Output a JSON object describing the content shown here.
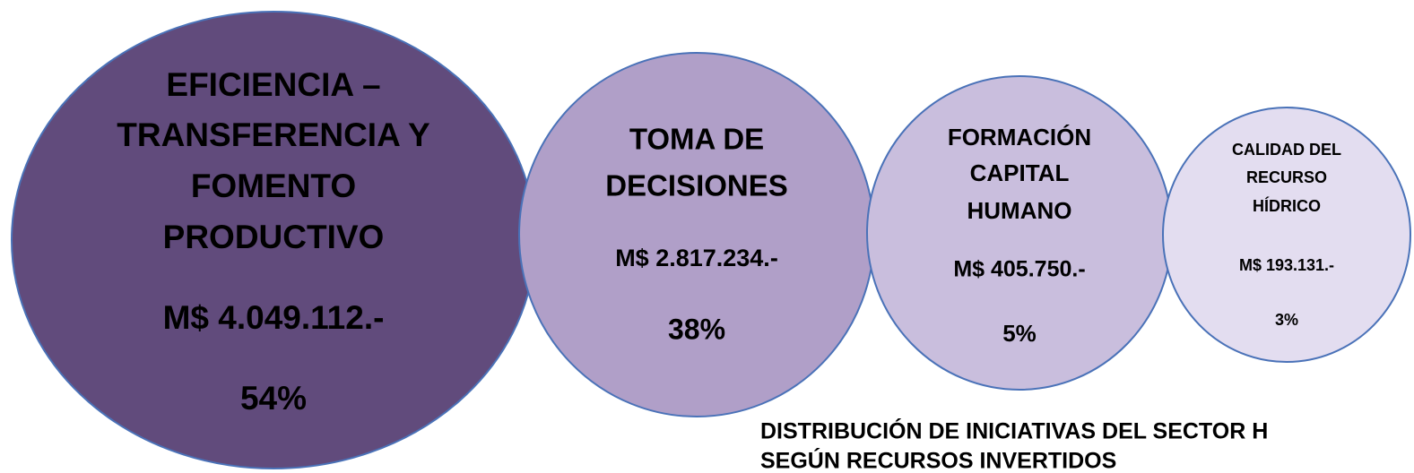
{
  "nodes": [
    {
      "label": [
        "EFICIENCIA –",
        "TRANSFERENCIA Y",
        "FOMENTO",
        "PRODUCTIVO"
      ],
      "amount": "M$ 4.049.112.-",
      "percent": "54%",
      "color": "#614b7c"
    },
    {
      "label": [
        "TOMA DE",
        "DECISIONES"
      ],
      "amount": "M$ 2.817.234.-",
      "percent": "38%",
      "color": "#b09fc8"
    },
    {
      "label": [
        "FORMACIÓN",
        "CAPITAL",
        "HUMANO"
      ],
      "amount": "M$ 405.750.-",
      "percent": "5%",
      "color": "#c9bedd"
    },
    {
      "label": [
        "CALIDAD DEL",
        "RECURSO",
        "HÍDRICO"
      ],
      "amount": "M$ 193.131.-",
      "percent": "3%",
      "color": "#e3ddf0"
    }
  ],
  "title": [
    "DISTRIBUCIÓN DE INICIATIVAS DEL SECTOR H",
    "SEGÚN RECURSOS INVERTIDOS"
  ]
}
